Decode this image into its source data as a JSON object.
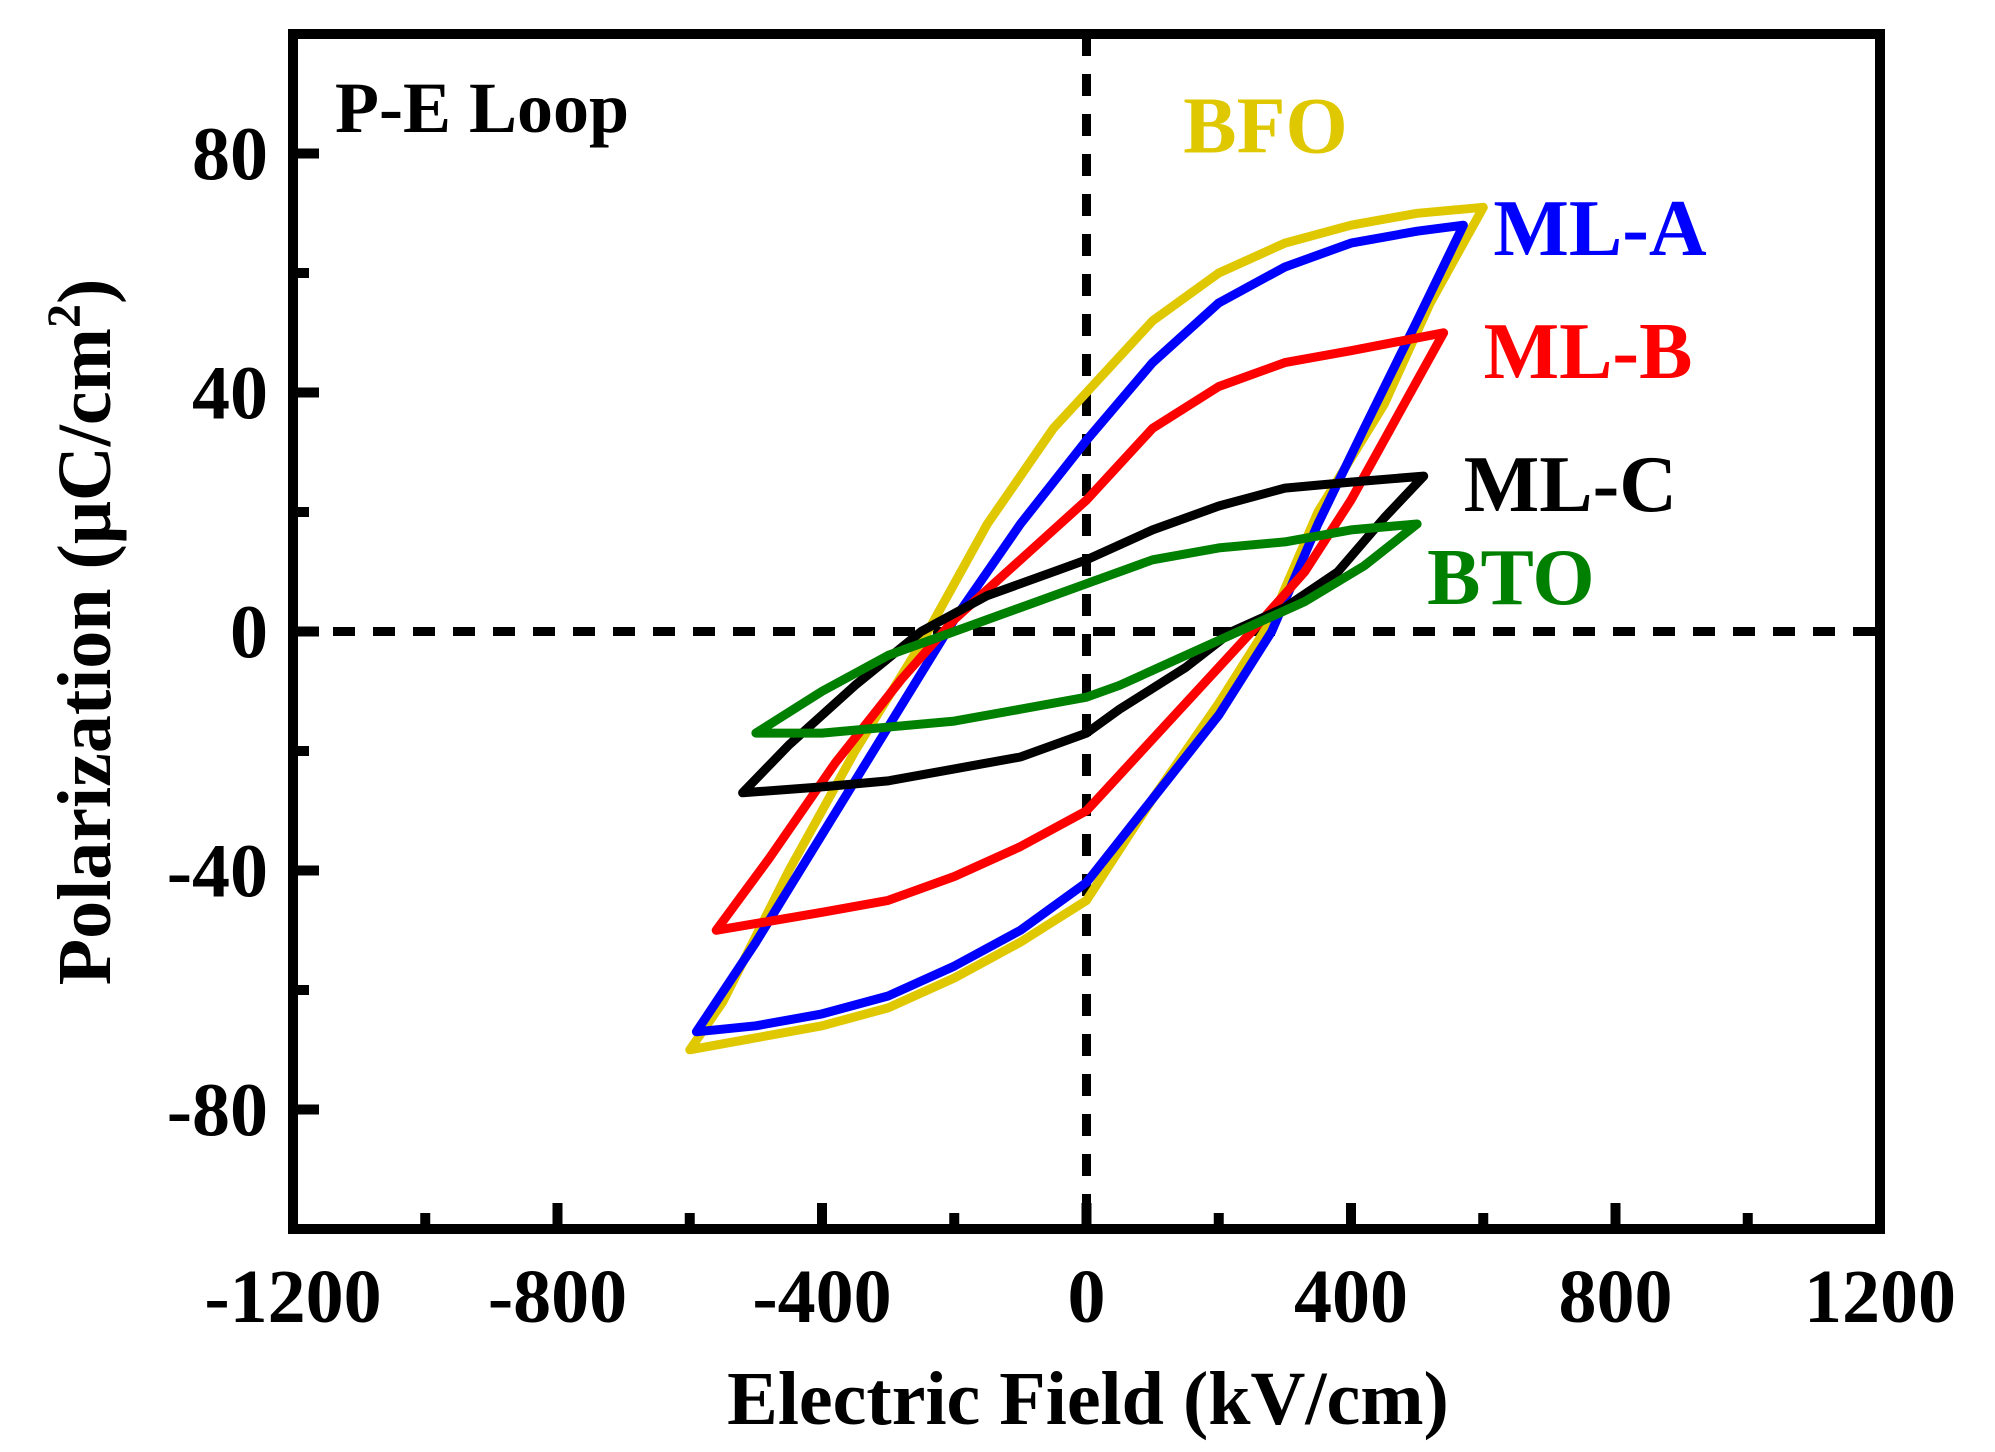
{
  "chart_data": {
    "type": "line",
    "title": "",
    "annotation": "P-E Loop",
    "xlabel": "Electric Field (kV/cm)",
    "ylabel": "Polarization (μC/cm²)",
    "ylabel_parts": {
      "main": "Polarization (μC/cm",
      "sup": "2",
      "tail": ")"
    },
    "xlim": [
      -1200,
      1200
    ],
    "ylim": [
      -100,
      100
    ],
    "xticks": [
      -1200,
      -800,
      -400,
      0,
      400,
      800,
      1200
    ],
    "yticks": [
      -80,
      -40,
      0,
      40,
      80
    ],
    "xtick_labels": [
      "-1200",
      "-800",
      "-400",
      "0",
      "400",
      "800",
      "1200"
    ],
    "ytick_labels": [
      "-80",
      "-40",
      "0",
      "40",
      "80"
    ],
    "grid": false,
    "reference_lines": {
      "x": 0,
      "y": 0,
      "style": "dashed"
    },
    "series": [
      {
        "name": "BFO",
        "color": "#e0c800",
        "upper_branch": [
          [
            -600,
            -70
          ],
          [
            -550,
            -62
          ],
          [
            -450,
            -40
          ],
          [
            -350,
            -20
          ],
          [
            -250,
            -2
          ],
          [
            -150,
            18
          ],
          [
            -50,
            34
          ],
          [
            0,
            40
          ],
          [
            100,
            52
          ],
          [
            200,
            60
          ],
          [
            300,
            65
          ],
          [
            400,
            68
          ],
          [
            500,
            70
          ],
          [
            600,
            71
          ]
        ],
        "lower_branch": [
          [
            600,
            71
          ],
          [
            520,
            55
          ],
          [
            450,
            38
          ],
          [
            350,
            20
          ],
          [
            280,
            2
          ],
          [
            200,
            -12
          ],
          [
            100,
            -28
          ],
          [
            0,
            -45
          ],
          [
            -100,
            -52
          ],
          [
            -200,
            -58
          ],
          [
            -300,
            -63
          ],
          [
            -400,
            -66
          ],
          [
            -500,
            -68
          ],
          [
            -600,
            -70
          ]
        ],
        "label_position": "above upper-right tip"
      },
      {
        "name": "ML-A",
        "color": "#0000ff",
        "upper_branch": [
          [
            -590,
            -67
          ],
          [
            -500,
            -52
          ],
          [
            -400,
            -34
          ],
          [
            -300,
            -16
          ],
          [
            -200,
            2
          ],
          [
            -100,
            18
          ],
          [
            0,
            32
          ],
          [
            100,
            45
          ],
          [
            200,
            55
          ],
          [
            300,
            61
          ],
          [
            400,
            65
          ],
          [
            500,
            67
          ],
          [
            570,
            68
          ]
        ],
        "lower_branch": [
          [
            570,
            68
          ],
          [
            500,
            52
          ],
          [
            420,
            34
          ],
          [
            350,
            18
          ],
          [
            280,
            0
          ],
          [
            200,
            -14
          ],
          [
            100,
            -28
          ],
          [
            0,
            -42
          ],
          [
            -100,
            -50
          ],
          [
            -200,
            -56
          ],
          [
            -300,
            -61
          ],
          [
            -400,
            -64
          ],
          [
            -500,
            -66
          ],
          [
            -590,
            -67
          ]
        ],
        "label_position": "right of upper tip"
      },
      {
        "name": "ML-B",
        "color": "#ff0000",
        "upper_branch": [
          [
            -560,
            -50
          ],
          [
            -480,
            -38
          ],
          [
            -380,
            -22
          ],
          [
            -280,
            -8
          ],
          [
            -200,
            2
          ],
          [
            -100,
            12
          ],
          [
            0,
            22
          ],
          [
            100,
            34
          ],
          [
            200,
            41
          ],
          [
            300,
            45
          ],
          [
            400,
            47
          ],
          [
            540,
            50
          ]
        ],
        "lower_branch": [
          [
            540,
            50
          ],
          [
            480,
            38
          ],
          [
            400,
            22
          ],
          [
            330,
            10
          ],
          [
            250,
            0
          ],
          [
            150,
            -12
          ],
          [
            50,
            -24
          ],
          [
            0,
            -30
          ],
          [
            -100,
            -36
          ],
          [
            -200,
            -41
          ],
          [
            -300,
            -45
          ],
          [
            -400,
            -47
          ],
          [
            -560,
            -50
          ]
        ],
        "label_position": "right of upper tip"
      },
      {
        "name": "ML-C",
        "color": "#000000",
        "upper_branch": [
          [
            -520,
            -27
          ],
          [
            -450,
            -19
          ],
          [
            -350,
            -9
          ],
          [
            -250,
            0
          ],
          [
            -150,
            6
          ],
          [
            -50,
            10
          ],
          [
            0,
            12
          ],
          [
            100,
            17
          ],
          [
            200,
            21
          ],
          [
            300,
            24
          ],
          [
            400,
            25
          ],
          [
            510,
            26
          ]
        ],
        "lower_branch": [
          [
            510,
            26
          ],
          [
            450,
            19
          ],
          [
            380,
            10
          ],
          [
            300,
            4
          ],
          [
            220,
            0
          ],
          [
            150,
            -6
          ],
          [
            50,
            -13
          ],
          [
            0,
            -17
          ],
          [
            -100,
            -21
          ],
          [
            -200,
            -23
          ],
          [
            -300,
            -25
          ],
          [
            -400,
            -26
          ],
          [
            -520,
            -27
          ]
        ],
        "label_position": "right of upper tip"
      },
      {
        "name": "BTO",
        "color": "#008000",
        "upper_branch": [
          [
            -500,
            -17
          ],
          [
            -400,
            -10
          ],
          [
            -300,
            -4
          ],
          [
            -200,
            0
          ],
          [
            -100,
            4
          ],
          [
            0,
            8
          ],
          [
            100,
            12
          ],
          [
            200,
            14
          ],
          [
            300,
            15
          ],
          [
            400,
            17
          ],
          [
            500,
            18
          ]
        ],
        "lower_branch": [
          [
            500,
            18
          ],
          [
            420,
            11
          ],
          [
            330,
            5
          ],
          [
            250,
            1
          ],
          [
            150,
            -4
          ],
          [
            50,
            -9
          ],
          [
            0,
            -11
          ],
          [
            -100,
            -13
          ],
          [
            -200,
            -15
          ],
          [
            -300,
            -16
          ],
          [
            -400,
            -17
          ],
          [
            -500,
            -17
          ]
        ],
        "label_position": "below ML-C label"
      }
    ]
  }
}
